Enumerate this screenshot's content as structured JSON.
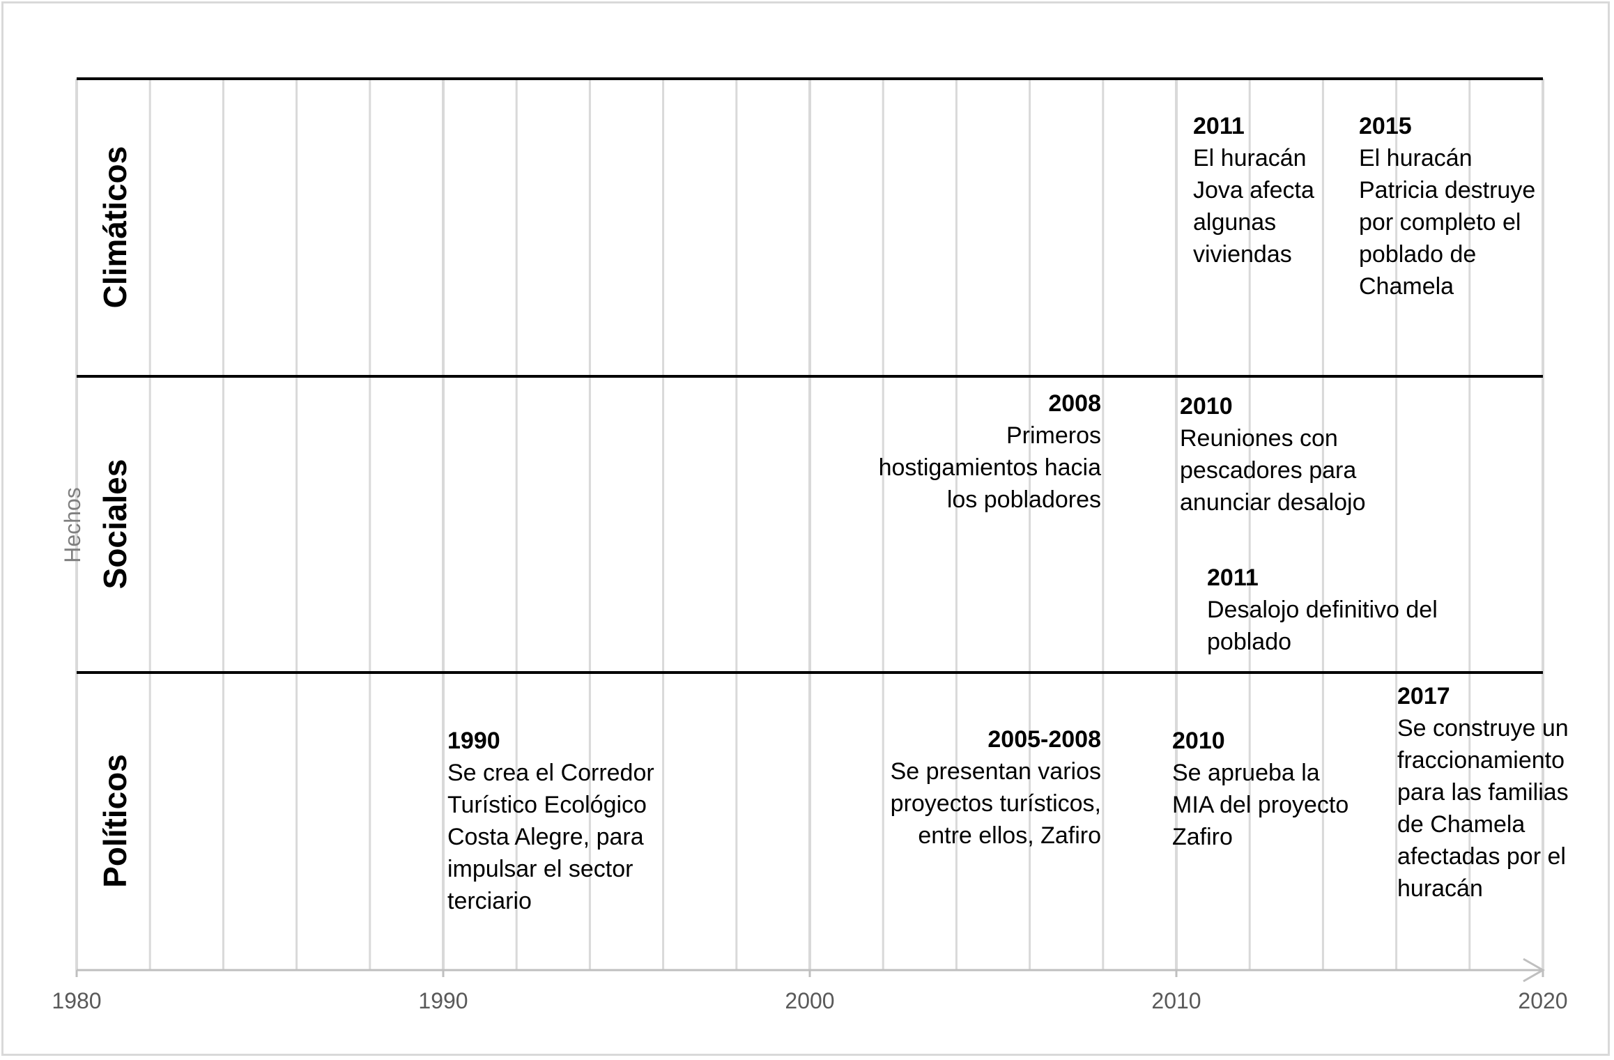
{
  "chart_data": {
    "type": "timeline",
    "xlim": [
      1980,
      2020
    ],
    "x_ticks": [
      "1980",
      "1990",
      "2000",
      "2010",
      "2020"
    ],
    "minor_tick_step": 2,
    "y_axis_title": "Hechos",
    "bands": [
      {
        "label": "Climáticos"
      },
      {
        "label": "Sociales"
      },
      {
        "label": "Políticos"
      }
    ],
    "events": [
      {
        "band": "Climáticos",
        "year": "2011",
        "text": "El huracán\nJova afecta\nalgunas\nviviendas"
      },
      {
        "band": "Climáticos",
        "year": "2015",
        "text": "El huracán\nPatricia destruye\npor completo el\npoblado de\nChamela"
      },
      {
        "band": "Sociales",
        "year": "2008",
        "text": "Primeros\nhostigamientos hacia\nlos pobladores"
      },
      {
        "band": "Sociales",
        "year": "2010",
        "text": "Reuniones con\npescadores para\nanunciar desalojo"
      },
      {
        "band": "Sociales",
        "year": "2011",
        "text": "Desalojo definitivo del\npoblado"
      },
      {
        "band": "Políticos",
        "year": "1990",
        "text": "Se crea el Corredor\nTurístico Ecológico\nCosta Alegre, para\nimpulsar el sector\nterciario"
      },
      {
        "band": "Políticos",
        "year": "2005-2008",
        "text": "Se presentan varios\nproyectos turísticos,\nentre ellos, Zafiro"
      },
      {
        "band": "Políticos",
        "year": "2010",
        "text": "Se aprueba la\nMIA del proyecto\nZafiro"
      },
      {
        "band": "Políticos",
        "year": "2017",
        "text": "Se construye un\nfraccionamiento\npara las familias\nde Chamela\nafectadas por el\nhuracán"
      }
    ]
  }
}
